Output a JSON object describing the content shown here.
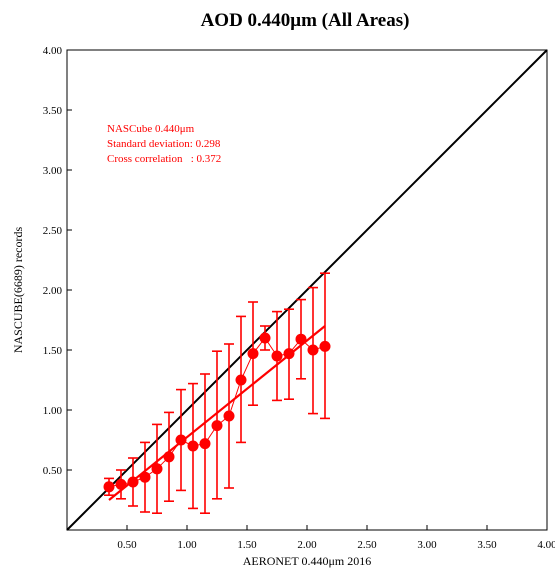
{
  "chart_data": {
    "type": "scatter",
    "title": "AOD 0.440μm (All Areas)",
    "xlabel": "AERONET 0.440μm 2016",
    "ylabel": "NASCUBE(6689) records",
    "xlim": [
      0,
      4.0
    ],
    "ylim": [
      0,
      4.0
    ],
    "xticks": [
      "0.50",
      "1.00",
      "1.50",
      "2.00",
      "2.50",
      "3.00",
      "3.50",
      "4.00"
    ],
    "yticks": [
      "0.50",
      "1.00",
      "1.50",
      "2.00",
      "2.50",
      "3.00",
      "3.50",
      "4.00"
    ],
    "grid": false,
    "annotations": [
      "NASCube 0.440μm",
      "Standard deviation: 0.298",
      "Cross correlation   : 0.372"
    ],
    "points": [
      {
        "x": 0.35,
        "y": 0.36,
        "lo": 0.29,
        "hi": 0.43
      },
      {
        "x": 0.45,
        "y": 0.38,
        "lo": 0.26,
        "hi": 0.5
      },
      {
        "x": 0.55,
        "y": 0.4,
        "lo": 0.2,
        "hi": 0.6
      },
      {
        "x": 0.65,
        "y": 0.44,
        "lo": 0.15,
        "hi": 0.73
      },
      {
        "x": 0.75,
        "y": 0.51,
        "lo": 0.14,
        "hi": 0.88
      },
      {
        "x": 0.85,
        "y": 0.61,
        "lo": 0.24,
        "hi": 0.98
      },
      {
        "x": 0.95,
        "y": 0.75,
        "lo": 0.33,
        "hi": 1.17
      },
      {
        "x": 1.05,
        "y": 0.7,
        "lo": 0.18,
        "hi": 1.22
      },
      {
        "x": 1.15,
        "y": 0.72,
        "lo": 0.14,
        "hi": 1.3
      },
      {
        "x": 1.25,
        "y": 0.87,
        "lo": 0.26,
        "hi": 1.49
      },
      {
        "x": 1.35,
        "y": 0.95,
        "lo": 0.35,
        "hi": 1.55
      },
      {
        "x": 1.45,
        "y": 1.25,
        "lo": 0.73,
        "hi": 1.78
      },
      {
        "x": 1.55,
        "y": 1.47,
        "lo": 1.04,
        "hi": 1.9
      },
      {
        "x": 1.65,
        "y": 1.6,
        "lo": 1.5,
        "hi": 1.7
      },
      {
        "x": 1.75,
        "y": 1.45,
        "lo": 1.08,
        "hi": 1.82
      },
      {
        "x": 1.85,
        "y": 1.47,
        "lo": 1.09,
        "hi": 1.84
      },
      {
        "x": 1.95,
        "y": 1.59,
        "lo": 1.26,
        "hi": 1.92
      },
      {
        "x": 2.05,
        "y": 1.5,
        "lo": 0.97,
        "hi": 2.02
      },
      {
        "x": 2.15,
        "y": 1.53,
        "lo": 0.93,
        "hi": 2.14
      }
    ],
    "regression_line": {
      "x": [
        0.35,
        2.15
      ],
      "y": [
        0.25,
        1.7
      ]
    },
    "reference_line": {
      "x": [
        0,
        4.0
      ],
      "y": [
        0,
        4.0
      ],
      "color": "#000000"
    },
    "series_color": "#ff0000"
  }
}
